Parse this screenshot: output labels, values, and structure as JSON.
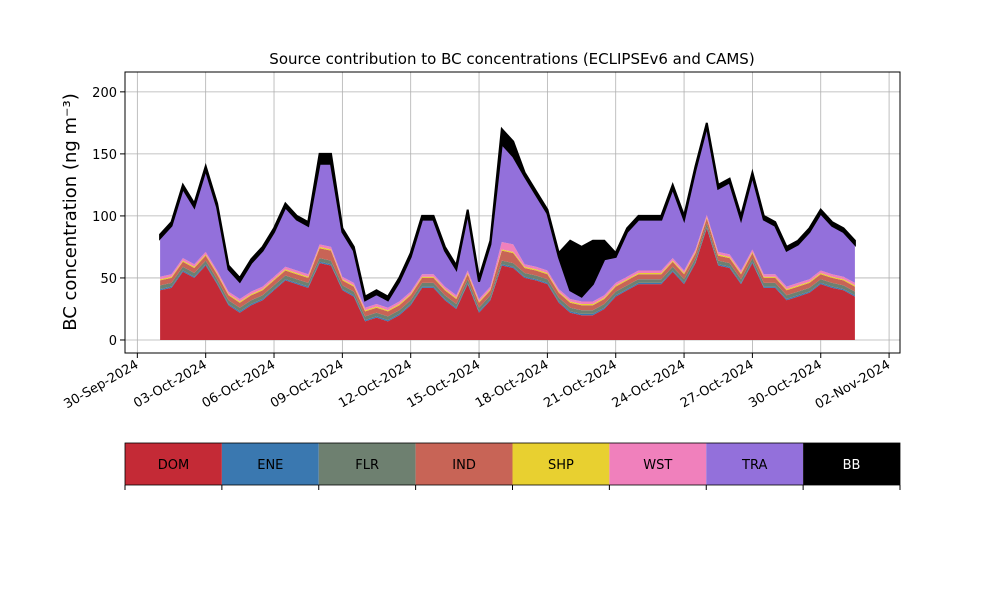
{
  "chart_data": {
    "type": "stacked_area",
    "title": "Source contribution to BC concentrations (ECLIPSEv6 and CAMS)",
    "y_label": "BC concentration (ng m⁻³)",
    "x": [
      "2024-10-01T00:00",
      "2024-10-01T12:00",
      "2024-10-02T00:00",
      "2024-10-02T12:00",
      "2024-10-03T00:00",
      "2024-10-03T12:00",
      "2024-10-04T00:00",
      "2024-10-04T12:00",
      "2024-10-05T00:00",
      "2024-10-05T12:00",
      "2024-10-06T00:00",
      "2024-10-06T12:00",
      "2024-10-07T00:00",
      "2024-10-07T12:00",
      "2024-10-08T00:00",
      "2024-10-08T12:00",
      "2024-10-09T00:00",
      "2024-10-09T12:00",
      "2024-10-10T00:00",
      "2024-10-10T12:00",
      "2024-10-11T00:00",
      "2024-10-11T12:00",
      "2024-10-12T00:00",
      "2024-10-12T12:00",
      "2024-10-13T00:00",
      "2024-10-13T12:00",
      "2024-10-14T00:00",
      "2024-10-14T12:00",
      "2024-10-15T00:00",
      "2024-10-15T12:00",
      "2024-10-16T00:00",
      "2024-10-16T12:00",
      "2024-10-17T00:00",
      "2024-10-17T12:00",
      "2024-10-18T00:00",
      "2024-10-18T12:00",
      "2024-10-19T00:00",
      "2024-10-19T12:00",
      "2024-10-20T00:00",
      "2024-10-20T12:00",
      "2024-10-21T00:00",
      "2024-10-21T12:00",
      "2024-10-22T00:00",
      "2024-10-22T12:00",
      "2024-10-23T00:00",
      "2024-10-23T12:00",
      "2024-10-24T00:00",
      "2024-10-24T12:00",
      "2024-10-25T00:00",
      "2024-10-25T12:00",
      "2024-10-26T00:00",
      "2024-10-26T12:00",
      "2024-10-27T00:00",
      "2024-10-27T12:00",
      "2024-10-28T00:00",
      "2024-10-28T12:00",
      "2024-10-29T00:00",
      "2024-10-29T12:00",
      "2024-10-30T00:00",
      "2024-10-30T12:00",
      "2024-10-31T00:00",
      "2024-10-31T12:00"
    ],
    "series": [
      {
        "name": "DOM",
        "color": "#c42a36",
        "values": [
          40,
          42,
          55,
          50,
          60,
          45,
          28,
          22,
          28,
          32,
          40,
          48,
          45,
          42,
          62,
          60,
          40,
          35,
          15,
          18,
          15,
          20,
          28,
          42,
          42,
          32,
          25,
          45,
          22,
          32,
          60,
          58,
          50,
          48,
          45,
          30,
          22,
          20,
          20,
          25,
          35,
          40,
          45,
          45,
          45,
          55,
          45,
          62,
          90,
          60,
          58,
          45,
          62,
          42,
          42,
          32,
          35,
          38,
          45,
          42,
          40,
          35
        ]
      },
      {
        "name": "ENE",
        "color": "#3a78b0",
        "values": [
          1,
          1,
          1,
          1,
          1,
          1,
          1,
          1,
          1,
          1,
          1,
          1,
          1,
          1,
          1,
          1,
          1,
          1,
          1,
          1,
          1,
          1,
          1,
          1,
          1,
          1,
          1,
          1,
          1,
          1,
          1,
          1,
          1,
          1,
          1,
          1,
          1,
          1,
          1,
          1,
          1,
          1,
          1,
          1,
          1,
          1,
          1,
          1,
          1,
          1,
          1,
          1,
          1,
          1,
          1,
          1,
          1,
          1,
          1,
          1,
          1,
          1
        ]
      },
      {
        "name": "FLR",
        "color": "#6e8070",
        "values": [
          3,
          3,
          3,
          3,
          3,
          3,
          3,
          3,
          3,
          3,
          3,
          3,
          3,
          3,
          3,
          3,
          3,
          3,
          3,
          3,
          3,
          3,
          3,
          3,
          3,
          3,
          3,
          3,
          3,
          3,
          3,
          3,
          3,
          3,
          3,
          3,
          3,
          3,
          3,
          3,
          3,
          3,
          3,
          3,
          3,
          3,
          3,
          3,
          3,
          3,
          3,
          3,
          3,
          3,
          3,
          3,
          3,
          3,
          3,
          3,
          3,
          3
        ]
      },
      {
        "name": "IND",
        "color": "#c86456",
        "values": [
          4,
          4,
          4,
          4,
          4,
          4,
          4,
          4,
          4,
          4,
          4,
          4,
          4,
          4,
          8,
          8,
          4,
          4,
          4,
          4,
          4,
          4,
          4,
          4,
          4,
          4,
          4,
          4,
          4,
          4,
          8,
          8,
          4,
          4,
          4,
          4,
          4,
          4,
          4,
          4,
          4,
          4,
          4,
          4,
          4,
          4,
          4,
          4,
          4,
          4,
          4,
          4,
          4,
          4,
          4,
          4,
          4,
          4,
          4,
          4,
          4,
          4
        ]
      },
      {
        "name": "SHP",
        "color": "#e8d030",
        "values": [
          1,
          1,
          1,
          1,
          1,
          1,
          1,
          1,
          1,
          1,
          1,
          1,
          1,
          1,
          1,
          1,
          1,
          1,
          1,
          1,
          1,
          1,
          1,
          1,
          1,
          1,
          1,
          1,
          1,
          1,
          1,
          1,
          1,
          1,
          1,
          1,
          1,
          1,
          1,
          1,
          1,
          1,
          1,
          1,
          1,
          1,
          1,
          1,
          1,
          1,
          1,
          1,
          1,
          1,
          1,
          1,
          1,
          1,
          1,
          1,
          1,
          1
        ]
      },
      {
        "name": "WST",
        "color": "#f080bc",
        "values": [
          2,
          2,
          2,
          2,
          2,
          2,
          2,
          2,
          2,
          2,
          2,
          2,
          2,
          2,
          2,
          2,
          2,
          2,
          2,
          2,
          2,
          2,
          2,
          2,
          2,
          2,
          2,
          2,
          2,
          2,
          6,
          6,
          2,
          2,
          2,
          2,
          2,
          2,
          2,
          2,
          2,
          2,
          2,
          2,
          2,
          2,
          2,
          2,
          2,
          2,
          2,
          2,
          2,
          2,
          2,
          2,
          2,
          2,
          2,
          2,
          2,
          2
        ]
      },
      {
        "name": "TRA",
        "color": "#9370db",
        "values": [
          31,
          39,
          56,
          46,
          66,
          51,
          18,
          14,
          23,
          29,
          36,
          48,
          41,
          39,
          65,
          67,
          36,
          26,
          6,
          8,
          6,
          16,
          28,
          44,
          44,
          29,
          21,
          46,
          14,
          34,
          79,
          71,
          71,
          58,
          46,
          26,
          7,
          4,
          14,
          29,
          21,
          36,
          41,
          41,
          41,
          56,
          41,
          64,
          71,
          51,
          58,
          41,
          59,
          44,
          39,
          29,
          31,
          38,
          46,
          39,
          36,
          31
        ]
      },
      {
        "name": "BB",
        "color": "#000000",
        "values": [
          3,
          3,
          3,
          3,
          3,
          3,
          3,
          3,
          3,
          3,
          3,
          3,
          3,
          3,
          8,
          8,
          3,
          3,
          3,
          3,
          3,
          3,
          3,
          3,
          3,
          3,
          3,
          3,
          3,
          3,
          12,
          12,
          3,
          3,
          3,
          3,
          40,
          40,
          35,
          15,
          3,
          3,
          3,
          3,
          3,
          3,
          3,
          3,
          3,
          3,
          3,
          3,
          3,
          3,
          3,
          3,
          3,
          3,
          3,
          3,
          3,
          3
        ]
      }
    ],
    "xlim": [
      "2024-09-29T11:00",
      "2024-11-02T11:30"
    ],
    "xticks": [
      {
        "value": "2024-09-30",
        "label": "30-Sep-2024"
      },
      {
        "value": "2024-10-03",
        "label": "03-Oct-2024"
      },
      {
        "value": "2024-10-06",
        "label": "06-Oct-2024"
      },
      {
        "value": "2024-10-09",
        "label": "09-Oct-2024"
      },
      {
        "value": "2024-10-12",
        "label": "12-Oct-2024"
      },
      {
        "value": "2024-10-15",
        "label": "15-Oct-2024"
      },
      {
        "value": "2024-10-18",
        "label": "18-Oct-2024"
      },
      {
        "value": "2024-10-21",
        "label": "21-Oct-2024"
      },
      {
        "value": "2024-10-24",
        "label": "24-Oct-2024"
      },
      {
        "value": "2024-10-27",
        "label": "27-Oct-2024"
      },
      {
        "value": "2024-10-30",
        "label": "30-Oct-2024"
      },
      {
        "value": "2024-11-02",
        "label": "02-Nov-2024"
      }
    ],
    "ylim": [
      -10.5,
      216
    ],
    "yticks": [
      0,
      50,
      100,
      150,
      200
    ],
    "grid": true
  }
}
